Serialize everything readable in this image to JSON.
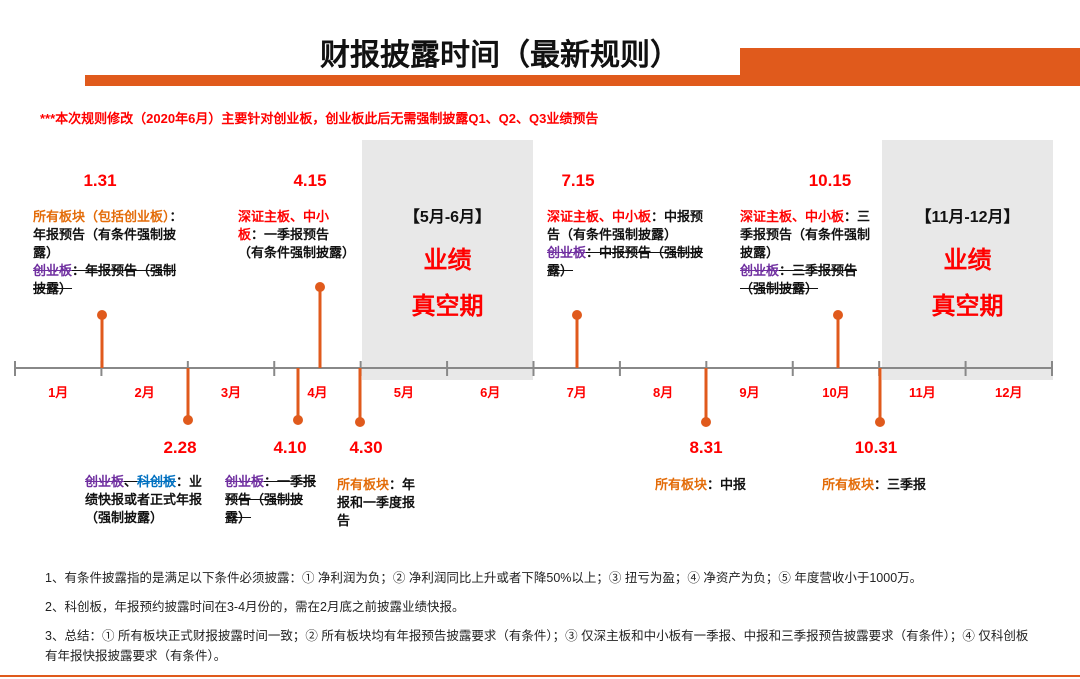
{
  "title": "财报披露时间（最新规则）",
  "note": "***本次规则修改（2020年6月）主要针对创业板，创业板此后无需强制披露Q1、Q2、Q3业绩预告",
  "months": [
    "1月",
    "2月",
    "3月",
    "4月",
    "5月",
    "6月",
    "7月",
    "8月",
    "9月",
    "10月",
    "11月",
    "12月"
  ],
  "events": [
    {
      "date": "1.31",
      "paragraphs": [
        [
          {
            "text": "所有板块（包括创业板）",
            "color": "orange"
          },
          {
            "text": "：年报预告（有条件强制披露）",
            "color": "black"
          }
        ],
        [
          {
            "text": "创业板",
            "color": "purple",
            "strike": true
          },
          {
            "text": "：年报预告（强制披露）",
            "color": "black",
            "strike": true
          }
        ]
      ]
    },
    {
      "date": "2.28",
      "paragraphs": [
        [
          {
            "text": "创业板",
            "color": "purple",
            "strike": true
          },
          {
            "text": "、",
            "color": "black",
            "strike": true
          },
          {
            "text": "科创板",
            "color": "blue",
            "strike": true
          },
          {
            "text": "：业绩快报或者正式年报（强制披露）",
            "color": "black"
          }
        ]
      ]
    },
    {
      "date": "4.10",
      "paragraphs": [
        [
          {
            "text": "创业板",
            "color": "purple",
            "strike": true
          },
          {
            "text": "：一季报预告（强制披露）",
            "color": "black",
            "strike": true
          }
        ]
      ]
    },
    {
      "date": "4.15",
      "paragraphs": [
        [
          {
            "text": "深证主板、中小板",
            "color": "red"
          },
          {
            "text": "：一季报预告（有条件强制披露）",
            "color": "black"
          }
        ]
      ]
    },
    {
      "date": "4.30",
      "paragraphs": [
        [
          {
            "text": "所有板块",
            "color": "orange"
          },
          {
            "text": "：年报和一季度报告",
            "color": "black"
          }
        ]
      ]
    },
    {
      "date": "7.15",
      "paragraphs": [
        [
          {
            "text": "深证主板、中小板",
            "color": "red"
          },
          {
            "text": "：中报预告（有条件强制披露）",
            "color": "black"
          }
        ],
        [
          {
            "text": "创业板",
            "color": "purple",
            "strike": true
          },
          {
            "text": "：中报预告（强制披露）",
            "color": "black",
            "strike": true
          }
        ]
      ]
    },
    {
      "date": "8.31",
      "paragraphs": [
        [
          {
            "text": "所有板块",
            "color": "orange"
          },
          {
            "text": "：中报",
            "color": "black"
          }
        ]
      ]
    },
    {
      "date": "10.15",
      "paragraphs": [
        [
          {
            "text": "深证主板、中小板",
            "color": "red"
          },
          {
            "text": "：三季报预告（有条件强制披露）",
            "color": "black"
          }
        ],
        [
          {
            "text": "创业板",
            "color": "purple",
            "strike": true
          },
          {
            "text": "：三季报预告（强制披露）",
            "color": "black",
            "strike": true
          }
        ]
      ]
    },
    {
      "date": "10.31",
      "paragraphs": [
        [
          {
            "text": "所有板块",
            "color": "orange"
          },
          {
            "text": "：三季报",
            "color": "black"
          }
        ]
      ]
    }
  ],
  "vacuum_periods": [
    {
      "range": "【5月-6月】",
      "line1": "业绩",
      "line2": "真空期"
    },
    {
      "range": "【11月-12月】",
      "line1": "业绩",
      "line2": "真空期"
    }
  ],
  "footnotes": [
    "1、有条件披露指的是满足以下条件必须披露：① 净利润为负；② 净利润同比上升或者下降50%以上；③ 扭亏为盈；④ 净资产为负；⑤ 年度营收小于1000万。",
    "2、科创板，年报预约披露时间在3-4月份的，需在2月底之前披露业绩快报。",
    "3、总结：① 所有板块正式财报披露时间一致；② 所有板块均有年报预告披露要求（有条件）；③ 仅深主板和中小板有一季报、中报和三季报预告披露要求（有条件）；④ 仅科创板有年报快报披露要求（有条件）。"
  ]
}
